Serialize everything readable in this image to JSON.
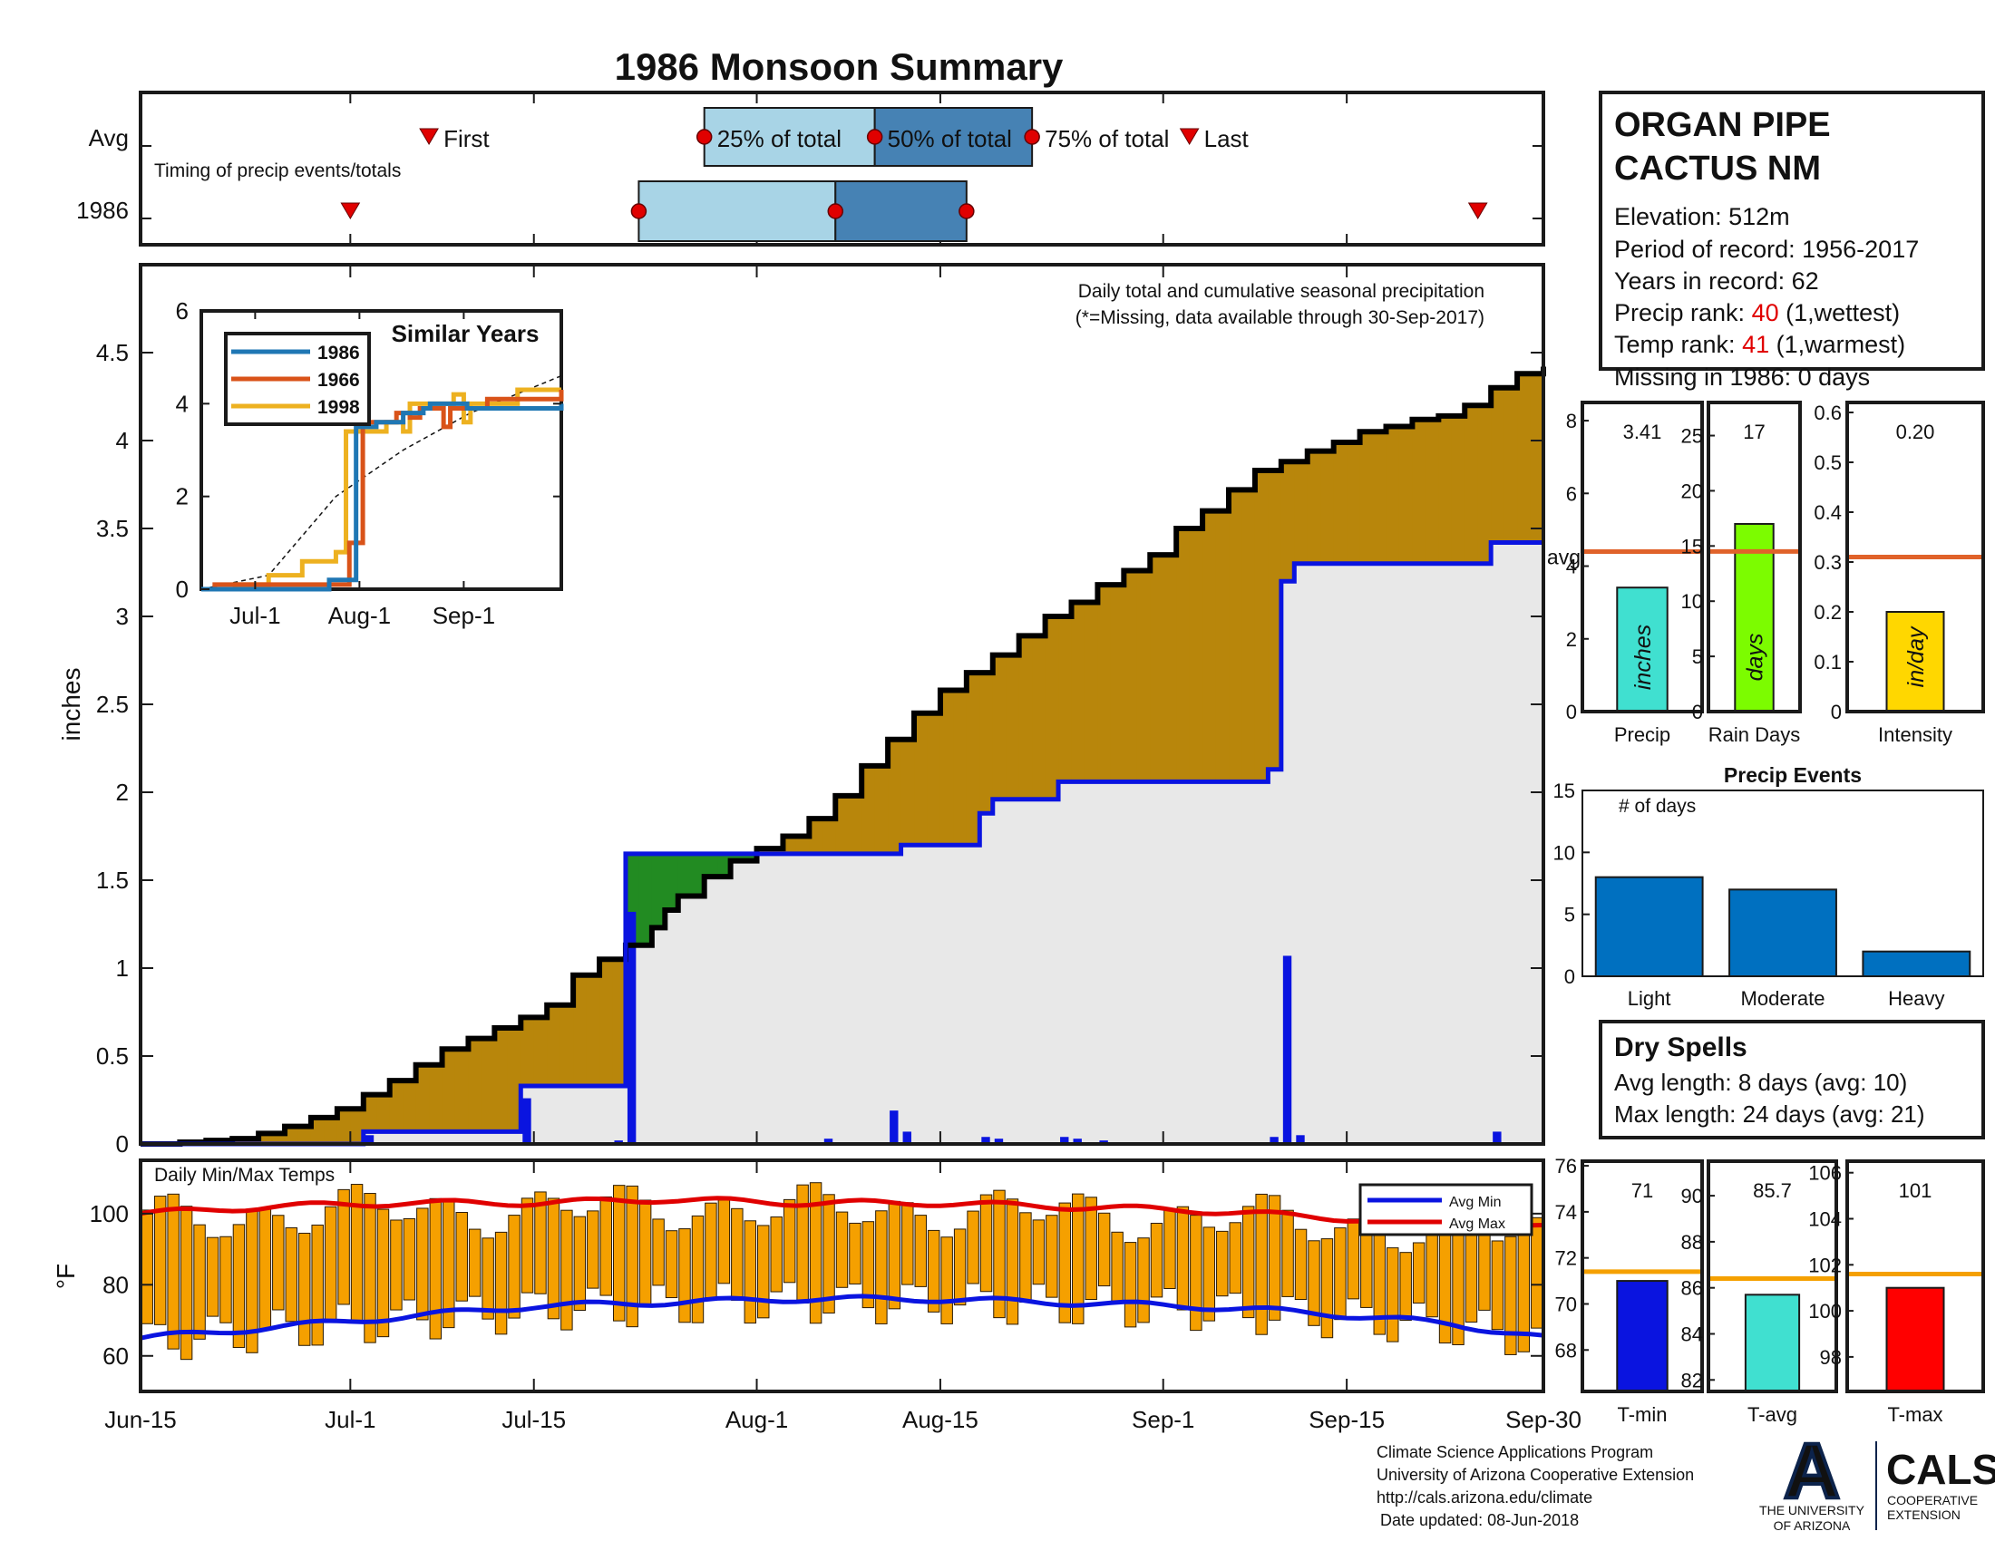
{
  "title": "1986 Monsoon Summary",
  "colors": {
    "title": "#e00000",
    "brown": "#b8860b",
    "green": "#228b22",
    "blue": "#0a14e0",
    "black": "#000000",
    "grey_fill": "#e8e8e8",
    "light_blue": "#a8d4e6",
    "mid_blue": "#4682b4",
    "red_marker": "#e00000",
    "orange_line": "#e0622a",
    "temp_bar": "#f5a000",
    "avg_min": "#0a14e0",
    "avg_max": "#e00000",
    "teal": "#40e0d0",
    "lime": "#7cfc00",
    "gold": "#ffd700",
    "event_bar": "#0070c0",
    "drybrown": "#8b4513",
    "yellow_line": "#f5a000",
    "ua_red": "#c8102e",
    "ua_navy": "#0c234b"
  },
  "timing": {
    "avg_label": "Avg",
    "year_label": "1986",
    "caption": "Timing of precip events/totals",
    "first_label": "First",
    "p25_label": "25% of total",
    "p50_label": "50% of total",
    "p75_label": "75% of total",
    "last_label": "Last",
    "avg": {
      "first": 22,
      "p25": 43,
      "p50": 56,
      "p75": 68,
      "last": 80
    },
    "year": {
      "first": 16,
      "p25": 38,
      "p50": 53,
      "p75": 63,
      "last": 102
    }
  },
  "main": {
    "ylabel": "inches",
    "note1": "Daily total and cumulative seasonal precipitation",
    "note2": "(*=Missing, data available through 30-Sep-2017)",
    "xticks": [
      "Jun-15",
      "Jul-1",
      "Jul-15",
      "Aug-1",
      "Aug-15",
      "Sep-1",
      "Sep-15",
      "Sep-30"
    ],
    "yticks": [
      "0",
      "0.5",
      "1",
      "1.5",
      "2",
      "2.5",
      "3",
      "3.5",
      "4",
      "4.5"
    ]
  },
  "chart_data": [
    {
      "name": "Daily total and cumulative seasonal precipitation",
      "type": "area",
      "x_range": [
        "Jun-15",
        "Sep-30"
      ],
      "ylim": [
        0,
        5
      ],
      "series": [
        {
          "name": "Avg cumulative",
          "x": [
            0,
            3,
            5,
            7,
            9,
            11,
            13,
            15,
            17,
            19,
            21,
            23,
            25,
            27,
            29,
            31,
            33,
            35,
            37,
            39,
            40,
            41,
            43,
            45,
            47,
            49,
            51,
            53,
            55,
            57,
            59,
            61,
            63,
            65,
            67,
            69,
            71,
            73,
            75,
            77,
            79,
            81,
            83,
            85,
            87,
            89,
            91,
            93,
            95,
            97,
            99,
            101,
            103,
            105,
            107
          ],
          "y": [
            0,
            0.01,
            0.02,
            0.03,
            0.06,
            0.1,
            0.15,
            0.2,
            0.28,
            0.36,
            0.45,
            0.54,
            0.6,
            0.66,
            0.72,
            0.79,
            0.96,
            1.05,
            1.13,
            1.23,
            1.33,
            1.41,
            1.52,
            1.61,
            1.68,
            1.75,
            1.85,
            1.98,
            2.15,
            2.3,
            2.45,
            2.58,
            2.68,
            2.78,
            2.89,
            3.0,
            3.08,
            3.18,
            3.26,
            3.35,
            3.5,
            3.6,
            3.72,
            3.83,
            3.88,
            3.94,
            3.99,
            4.05,
            4.08,
            4.12,
            4.14,
            4.2,
            4.3,
            4.38,
            4.42
          ]
        },
        {
          "name": "1986 cumulative",
          "x": [
            0,
            17,
            29,
            36,
            37,
            57,
            58,
            59,
            64,
            65,
            70,
            72,
            86,
            87,
            88,
            103,
            107
          ],
          "y": [
            0,
            0.07,
            0.33,
            0.33,
            1.65,
            1.65,
            1.7,
            1.7,
            1.88,
            1.96,
            2.06,
            2.06,
            2.13,
            3.2,
            3.3,
            3.42,
            3.42
          ]
        },
        {
          "name": "1986 daily",
          "x": [
            17,
            29,
            36,
            37,
            52,
            57,
            58,
            64,
            65,
            70,
            71,
            73,
            86,
            87,
            88,
            103
          ],
          "y": [
            0.05,
            0.26,
            0.02,
            1.32,
            0.03,
            0.19,
            0.07,
            0.04,
            0.03,
            0.04,
            0.03,
            0.02,
            0.04,
            1.07,
            0.05,
            0.07
          ]
        }
      ],
      "yticks": [
        0,
        0.5,
        1,
        1.5,
        2,
        2.5,
        3,
        3.5,
        4,
        4.5
      ],
      "xticks": [
        "Jun-15",
        "Jul-1",
        "Jul-15",
        "Aug-1",
        "Aug-15",
        "Sep-1",
        "Sep-15",
        "Sep-30"
      ]
    },
    {
      "name": "Similar Years",
      "type": "line",
      "title": "Similar Years",
      "ylim": [
        0,
        6
      ],
      "yticks": [
        "0",
        "2",
        "4",
        "6"
      ],
      "xticks": [
        "Jul-1",
        "Aug-1",
        "Sep-1"
      ],
      "series": [
        {
          "name": "1986",
          "x": [
            0,
            37,
            38,
            45,
            46,
            52,
            55,
            60,
            62,
            66,
            68,
            77,
            79,
            88,
            107
          ],
          "y": [
            0,
            0,
            0.2,
            0.2,
            3.5,
            3.6,
            3.6,
            3.8,
            3.8,
            3.9,
            4.0,
            4.0,
            3.9,
            3.9,
            4.0
          ]
        },
        {
          "name": "1966",
          "x": [
            0,
            4,
            20,
            30,
            34,
            43,
            44,
            45,
            48,
            58,
            62,
            65,
            70,
            72,
            74,
            80,
            85,
            95,
            98,
            107
          ],
          "y": [
            0,
            0.1,
            0.1,
            0.1,
            0.1,
            0.1,
            1.0,
            1.0,
            3.6,
            3.8,
            3.7,
            3.9,
            3.9,
            3.5,
            3.9,
            3.9,
            4.1,
            4.1,
            4.1,
            4.3
          ]
        },
        {
          "name": "1998",
          "x": [
            0,
            10,
            15,
            20,
            22,
            30,
            32,
            40,
            43,
            55,
            58,
            60,
            62,
            68,
            75,
            78,
            80,
            86,
            90,
            94,
            98,
            107
          ],
          "y": [
            0,
            0.1,
            0.1,
            0.3,
            0.3,
            0.6,
            0.6,
            0.8,
            3.4,
            3.6,
            3.6,
            3.4,
            4.0,
            4.0,
            4.2,
            3.6,
            4.0,
            4.0,
            4.0,
            4.3,
            4.3,
            4.3
          ]
        },
        {
          "name": "Avg",
          "x": [
            0,
            20,
            40,
            60,
            80,
            107
          ],
          "y": [
            0,
            0.3,
            2.0,
            3.0,
            3.8,
            4.6
          ]
        }
      ]
    },
    {
      "name": "Daily Min/Max Temps",
      "type": "bar",
      "title": "Daily Min/Max Temps",
      "ylabel": "°F",
      "ylim": [
        50,
        115
      ],
      "yticks": [
        60,
        80,
        100
      ],
      "legend": [
        "Avg Min",
        "Avg Max"
      ],
      "series": [
        {
          "name": "Avg Max",
          "x": [
            0,
            10,
            20,
            30,
            40,
            50,
            60,
            70,
            80,
            90,
            100,
            107
          ],
          "y": [
            100,
            102,
            103,
            103,
            104,
            103,
            103,
            102,
            101,
            99,
            97,
            96
          ]
        },
        {
          "name": "Avg Min",
          "x": [
            0,
            10,
            20,
            30,
            40,
            50,
            60,
            70,
            80,
            90,
            100,
            107
          ],
          "y": [
            65,
            68,
            71,
            74,
            75,
            76,
            76,
            75,
            74,
            72,
            69,
            65
          ]
        }
      ]
    },
    {
      "name": "Precip",
      "type": "bar",
      "title": "Precip",
      "categories": [
        "Precip"
      ],
      "values": [
        3.41
      ],
      "avg": 4.4,
      "ylim": [
        0,
        8.5
      ],
      "yticks": [
        0,
        2,
        4,
        6,
        8
      ],
      "value_label": "3.41",
      "bar_label": "inches",
      "avg_label": "avg"
    },
    {
      "name": "Rain Days",
      "type": "bar",
      "title": "Rain Days",
      "categories": [
        "Rain Days"
      ],
      "values": [
        17
      ],
      "avg": 14.5,
      "ylim": [
        0,
        28
      ],
      "yticks": [
        0,
        5,
        10,
        15,
        20,
        25
      ],
      "value_label": "17",
      "bar_label": "days"
    },
    {
      "name": "Intensity",
      "type": "bar",
      "title": "Intensity",
      "categories": [
        "Intensity"
      ],
      "values": [
        0.2
      ],
      "avg": 0.31,
      "ylim": [
        0,
        0.62
      ],
      "yticks": [
        0,
        0.1,
        0.2,
        0.3,
        0.4,
        0.5,
        0.6
      ],
      "value_label": "0.20",
      "bar_label": "in/day"
    },
    {
      "name": "Precip Events",
      "type": "bar",
      "title": "Precip Events",
      "categories": [
        "Light",
        "Moderate",
        "Heavy"
      ],
      "values": [
        8,
        7,
        2
      ],
      "ylim": [
        0,
        15
      ],
      "yticks": [
        0,
        5,
        10,
        15
      ],
      "annotation": "# of days"
    },
    {
      "name": "T-min",
      "type": "bar",
      "title": "T-min",
      "values": [
        71
      ],
      "avg": 71.4,
      "ylim": [
        66.2,
        76.2
      ],
      "yticks": [
        68,
        70,
        72,
        74,
        76
      ],
      "value_label": "71"
    },
    {
      "name": "T-avg",
      "type": "bar",
      "title": "T-avg",
      "values": [
        85.7
      ],
      "avg": 86.4,
      "ylim": [
        81.5,
        91.5
      ],
      "yticks": [
        82,
        84,
        86,
        88,
        90
      ],
      "value_label": "85.7"
    },
    {
      "name": "T-max",
      "type": "bar",
      "title": "T-max",
      "values": [
        101
      ],
      "avg": 101.6,
      "ylim": [
        96.5,
        106.5
      ],
      "yticks": [
        98,
        100,
        102,
        104,
        106
      ],
      "value_label": "101"
    }
  ],
  "station": {
    "name_line1": "ORGAN PIPE",
    "name_line2": "CACTUS NM",
    "elevation": "Elevation: 512m",
    "period": "Period of record: 1956-2017",
    "years": "Years in record: 62",
    "precip_rank_label": "Precip rank: ",
    "precip_rank": "40",
    "precip_rank_suffix": " (1,wettest)",
    "temp_rank_label": "Temp rank: ",
    "temp_rank": "41",
    "temp_rank_suffix": " (1,warmest)",
    "missing": "Missing in 1986: 0 days"
  },
  "dry_spells": {
    "title": "Dry Spells",
    "avg_length": "Avg length: 8 days (avg: 10)",
    "max_length": "Max length: 24 days (avg: 21)"
  },
  "footer": {
    "line1": "Climate Science Applications Program",
    "line2": "University of Arizona Cooperative Extension",
    "line3": "http://cals.arizona.edu/climate",
    "line4": "Date updated: 08-Jun-2018"
  },
  "logos": {
    "ua_letter": "A",
    "ua_line1": "THE UNIVERSITY",
    "ua_line2": "OF ARIZONA",
    "cals": "CALS",
    "cals_line1": "COOPERATIVE",
    "cals_line2": "EXTENSION"
  }
}
